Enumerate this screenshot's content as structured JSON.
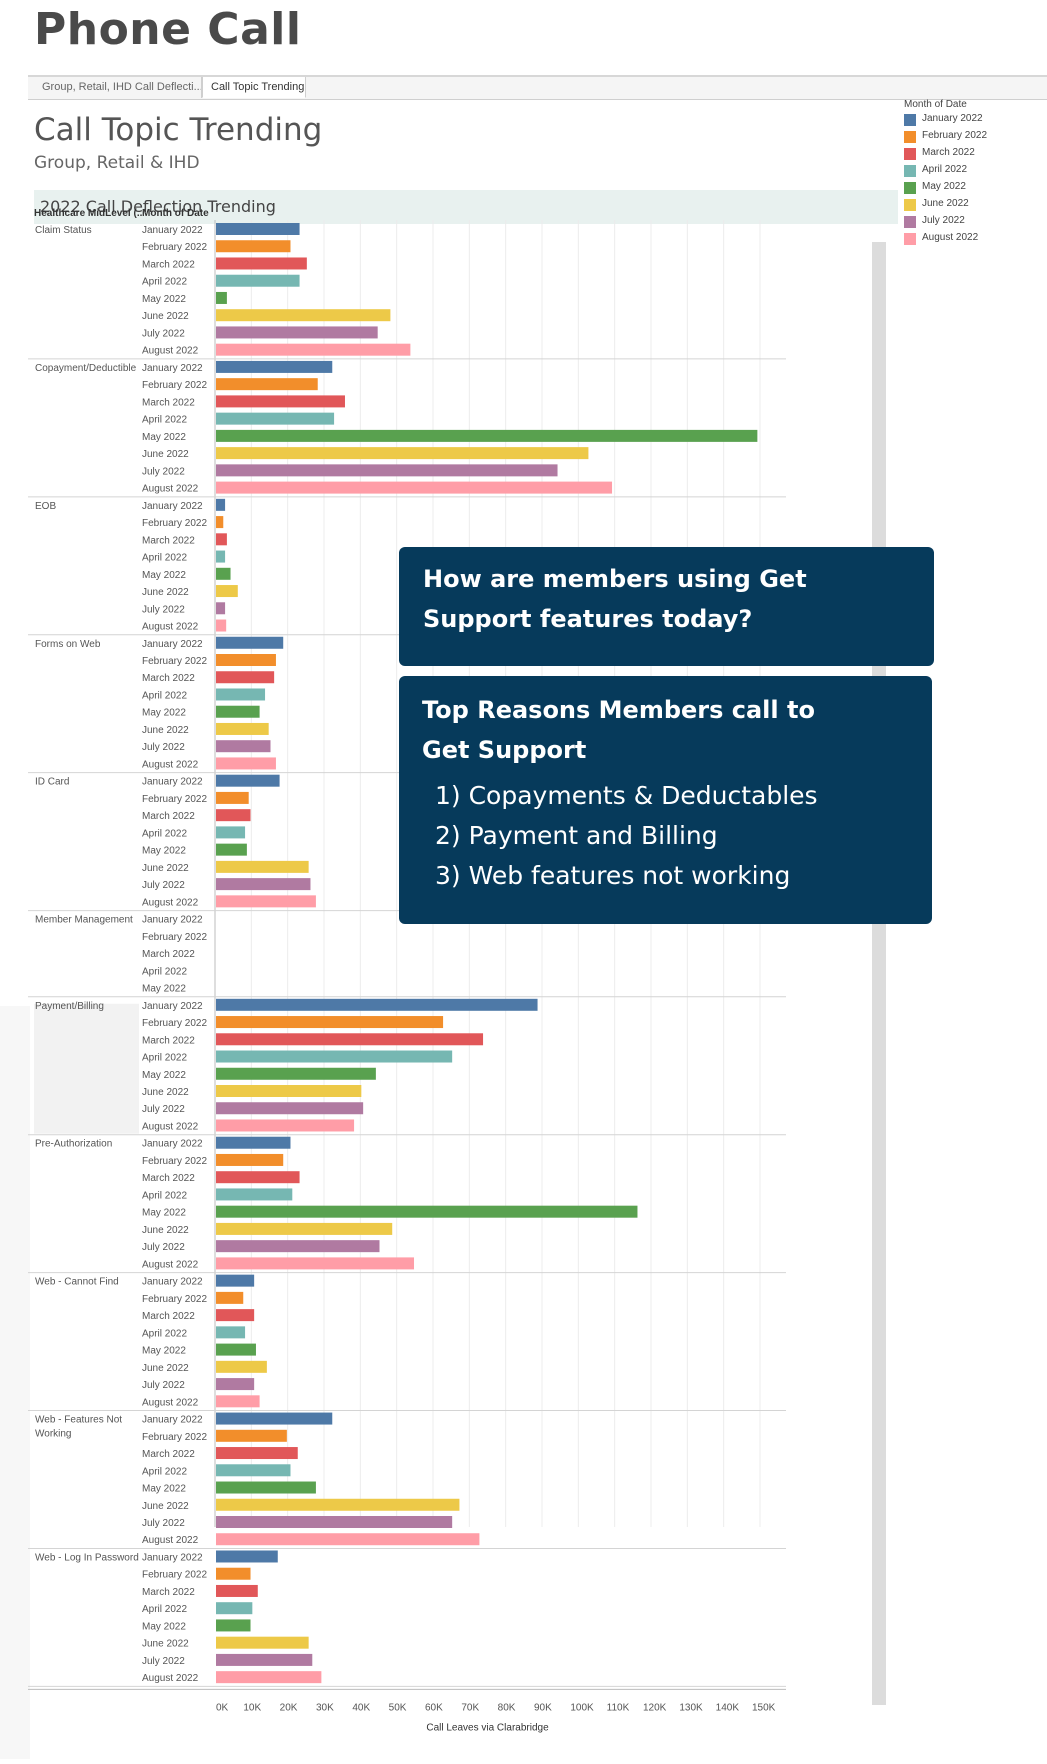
{
  "page": {
    "title": "Phone Call"
  },
  "tabs": [
    {
      "label": "Group, Retail, IHD Call Deflecti...",
      "active": false
    },
    {
      "label": "Call Topic Trending",
      "active": true
    }
  ],
  "viz": {
    "title": "Call Topic Trending",
    "subtitle": "Group, Retail & IHD",
    "section_title": "2022 Call Deflection Trending",
    "col_header_topic": "Healthcare MidLevel (..",
    "col_header_month": "Month of Date"
  },
  "legend": {
    "title": "Month of Date",
    "items": [
      {
        "label": "January 2022",
        "color": "#4e79a7"
      },
      {
        "label": "February 2022",
        "color": "#f28e2b"
      },
      {
        "label": "March 2022",
        "color": "#e15759"
      },
      {
        "label": "April 2022",
        "color": "#76b7b2"
      },
      {
        "label": "May 2022",
        "color": "#59a14f"
      },
      {
        "label": "June 2022",
        "color": "#edc948"
      },
      {
        "label": "July 2022",
        "color": "#b07aa1"
      },
      {
        "label": "August 2022",
        "color": "#ff9da7"
      }
    ]
  },
  "callouts": {
    "question": "How are members using Get Support features today?",
    "reasons_title": "Top Reasons Members call to Get Support",
    "reasons": [
      "1) Copayments & Deductables",
      "2) Payment and Billing",
      "3) Web features not working"
    ]
  },
  "chart_data": {
    "type": "bar",
    "orientation": "horizontal",
    "xlabel": "Call Leaves via Clarabridge",
    "xlim": [
      0,
      155000
    ],
    "xticks": [
      "0K",
      "10K",
      "20K",
      "30K",
      "40K",
      "50K",
      "60K",
      "70K",
      "80K",
      "90K",
      "100K",
      "110K",
      "120K",
      "130K",
      "140K",
      "150K"
    ],
    "grid": true,
    "legend_position": "top-right",
    "groups": [
      {
        "topic": "Claim Status",
        "months": [
          "January 2022",
          "February 2022",
          "March 2022",
          "April 2022",
          "May 2022",
          "June 2022",
          "July 2022",
          "August 2022"
        ],
        "values": [
          23000,
          20500,
          25000,
          23000,
          3000,
          48000,
          44500,
          53500
        ]
      },
      {
        "topic": "Copayment/Deductible",
        "months": [
          "January 2022",
          "February 2022",
          "March 2022",
          "April 2022",
          "May 2022",
          "June 2022",
          "July 2022",
          "August 2022"
        ],
        "values": [
          32000,
          28000,
          35500,
          32500,
          149000,
          102500,
          94000,
          109000
        ]
      },
      {
        "topic": "EOB",
        "months": [
          "January 2022",
          "February 2022",
          "March 2022",
          "April 2022",
          "May 2022",
          "June 2022",
          "July 2022",
          "August 2022"
        ],
        "values": [
          2500,
          2000,
          3000,
          2500,
          4000,
          6000,
          2500,
          2800
        ]
      },
      {
        "topic": "Forms on Web",
        "months": [
          "January 2022",
          "February 2022",
          "March 2022",
          "April 2022",
          "May 2022",
          "June 2022",
          "July 2022",
          "August 2022"
        ],
        "values": [
          18500,
          16500,
          16000,
          13500,
          12000,
          14500,
          15000,
          16500
        ]
      },
      {
        "topic": "ID Card",
        "months": [
          "January 2022",
          "February 2022",
          "March 2022",
          "April 2022",
          "May 2022",
          "June 2022",
          "July 2022",
          "August 2022"
        ],
        "values": [
          17500,
          9000,
          9500,
          8000,
          8500,
          25500,
          26000,
          27500
        ]
      },
      {
        "topic": "Member Management",
        "months": [
          "January 2022",
          "February 2022",
          "March 2022",
          "April 2022",
          "May 2022"
        ],
        "values": [
          0,
          0,
          0,
          0,
          0
        ]
      },
      {
        "topic": "Payment/Billing",
        "months": [
          "January 2022",
          "February 2022",
          "March 2022",
          "April 2022",
          "May 2022",
          "June 2022",
          "July 2022",
          "August 2022"
        ],
        "values": [
          88500,
          62500,
          73500,
          65000,
          44000,
          40000,
          40500,
          38000
        ]
      },
      {
        "topic": "Pre-Authorization",
        "months": [
          "January 2022",
          "February 2022",
          "March 2022",
          "April 2022",
          "May 2022",
          "June 2022",
          "July 2022",
          "August 2022"
        ],
        "values": [
          20500,
          18500,
          23000,
          21000,
          116000,
          48500,
          45000,
          54500
        ]
      },
      {
        "topic": "Web - Cannot Find",
        "months": [
          "January 2022",
          "February 2022",
          "March 2022",
          "April 2022",
          "May 2022",
          "June 2022",
          "July 2022",
          "August 2022"
        ],
        "values": [
          10500,
          7500,
          10500,
          8000,
          11000,
          14000,
          10500,
          12000
        ]
      },
      {
        "topic": "Web - Features Not Working",
        "months": [
          "January 2022",
          "February 2022",
          "March 2022",
          "April 2022",
          "May 2022",
          "June 2022",
          "July 2022",
          "August 2022"
        ],
        "values": [
          32000,
          19500,
          22500,
          20500,
          27500,
          67000,
          65000,
          72500
        ]
      },
      {
        "topic": "Web - Log In Password",
        "months": [
          "January 2022",
          "February 2022",
          "March 2022",
          "April 2022",
          "May 2022",
          "June 2022",
          "July 2022",
          "August 2022"
        ],
        "values": [
          17000,
          9500,
          11500,
          10000,
          9500,
          25500,
          26500,
          29000
        ]
      }
    ]
  }
}
